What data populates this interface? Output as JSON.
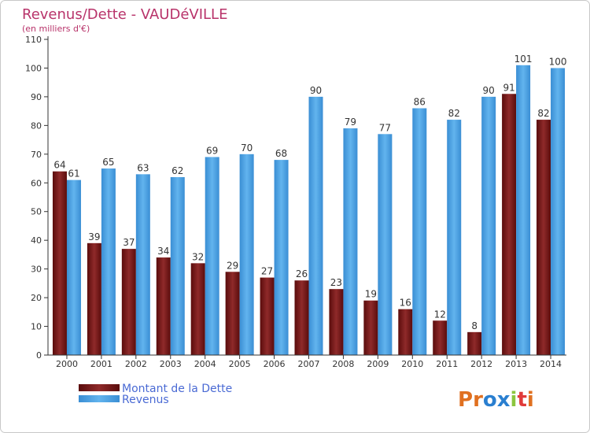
{
  "chart_data": {
    "type": "bar",
    "title": "Revenus/Dette - VAUDéVILLE",
    "subtitle": "(en milliers d'€)",
    "categories": [
      "2000",
      "2001",
      "2002",
      "2003",
      "2004",
      "2005",
      "2006",
      "2007",
      "2008",
      "2009",
      "2010",
      "2011",
      "2012",
      "2013",
      "2014"
    ],
    "series": [
      {
        "name": "Montant de la Dette",
        "color": "#7a1f1f",
        "values": [
          64,
          39,
          37,
          34,
          32,
          29,
          27,
          26,
          23,
          19,
          16,
          12,
          8,
          91,
          82
        ]
      },
      {
        "name": "Revenus",
        "color": "#4da6e6",
        "values": [
          61,
          65,
          63,
          62,
          69,
          70,
          68,
          90,
          79,
          77,
          86,
          82,
          90,
          101,
          100
        ]
      }
    ],
    "ylim": [
      0,
      110
    ],
    "yticks": [
      0,
      10,
      20,
      30,
      40,
      50,
      60,
      70,
      80,
      90,
      100,
      110
    ],
    "grid": false,
    "legend": "bottom-left",
    "watermark": "Proxiti"
  }
}
